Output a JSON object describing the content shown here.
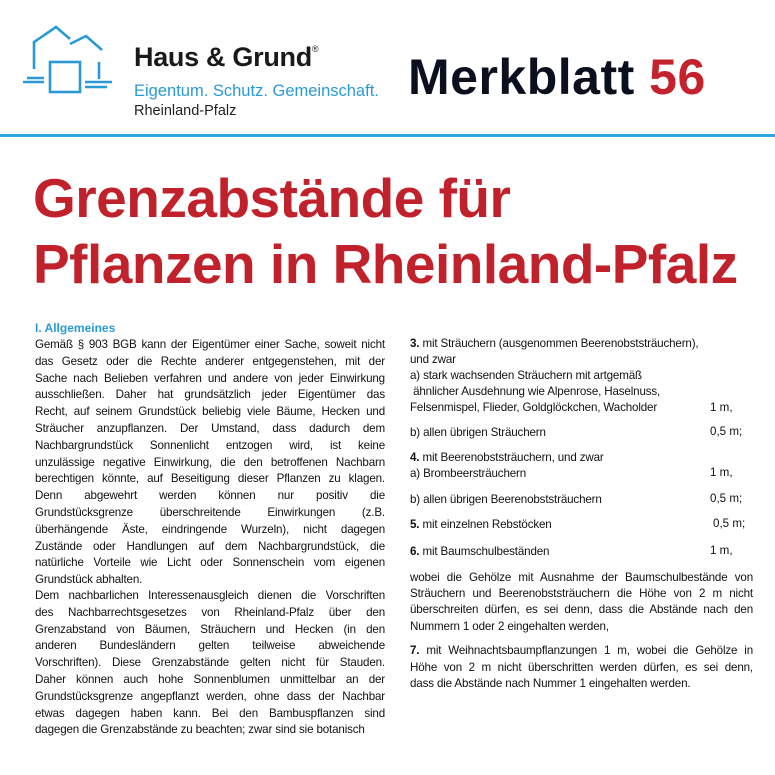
{
  "header": {
    "brand": "Haus & Grund",
    "registered": "®",
    "tagline": "Eigentum. Schutz. Gemeinschaft.",
    "region": "Rheinland-Pfalz",
    "merkblatt_label": "Merkblatt",
    "merkblatt_number": "56",
    "colors": {
      "accent_blue": "#2aa8e0",
      "title_red": "#c0212b"
    }
  },
  "title": {
    "line1": "Grenzabstände für",
    "line2": "Pflanzen in Rheinland-Pfalz"
  },
  "left": {
    "heading": "I. Allgemeines",
    "para1": [
      "Gemäß § 903 BGB kann der Eigentümer einer Sache, soweit nicht",
      "das Gesetz oder die Rechte anderer entgegenstehen, mit der",
      "Sache nach Belieben verfahren und andere von jeder Einwirkung",
      "ausschließen. Daher hat grundsätzlich jeder Eigentümer das",
      "Recht, auf seinem Grundstück beliebig viele Bäume, Hecken und",
      "Sträucher anzupflanzen. Der Umstand, dass dadurch dem",
      "Nachbargrundstück Sonnenlicht entzogen wird, ist keine",
      "unzulässige negative Einwirkung, die den betroffenen Nachbarn",
      "berechtigen könnte, auf Beseitigung dieser Pflanzen zu klagen.",
      "Denn abgewehrt werden können nur positiv die",
      "Grundstücksgrenze überschreitende Einwirkungen (z.B.",
      "überhängende Äste, eindringende Wurzeln), nicht dagegen",
      "Zustände oder Handlungen auf dem Nachbargrundstück, die",
      "natürliche Vorteile wie Licht oder Sonnenschein vom eigenen",
      "Grundstück abhalten."
    ],
    "para2": [
      "Dem nachbarlichen Interessenausgleich dienen die Vorschriften",
      "des Nachbarrechtsgesetzes von Rheinland-Pfalz über den",
      "Grenzabstand von Bäumen, Sträuchern und Hecken (in den",
      "anderen Bundesländern gelten teilweise abweichende",
      "Vorschriften). Diese Grenzabstände gelten nicht für Stauden.",
      "Daher können auch hohe Sonnenblumen unmittelbar an der",
      "Grundstücksgrenze angepflanzt werden, ohne dass der Nachbar",
      "etwas dagegen haben kann. Bei den Bambuspflanzen sind",
      "dagegen die Grenzabstände zu beachten; zwar sind sie botanisch"
    ]
  },
  "right": {
    "item3": {
      "num": "3.",
      "lines": [
        "mit Sträuchern (ausgenommen Beerenobststräuchern),",
        "und zwar",
        "a) stark wachsenden Sträuchern mit artgemäß",
        " ähnlicher Ausdehnung wie Alpenrose, Haselnuss,",
        "Felsenmispel, Flieder, Goldglöckchen, Wacholder"
      ],
      "value_a": "1 m,",
      "b": "b) allen übrigen Sträuchern",
      "value_b": "0,5 m;"
    },
    "item4": {
      "num": "4.",
      "text": "mit Beerenobststräuchern, und zwar",
      "a": "a) Brombeersträuchern",
      "value_a": "1 m,",
      "b": "b) allen übrigen Beerenobststräuchern",
      "value_b": "0,5 m;"
    },
    "item5": {
      "num": "5.",
      "text": "mit einzelnen Rebstöcken",
      "value": "0,5 m;"
    },
    "item6": {
      "num": "6.",
      "text": "mit Baumschulbeständen",
      "value": "1 m,"
    },
    "note": [
      "wobei die Gehölze mit Ausnahme der Baumschulbestände von",
      "Sträuchern und Beerenobststräuchern die Höhe von 2 m nicht",
      "überschreiten dürfen, es sei denn, dass die Abstände nach den",
      "Nummern 1 oder 2 eingehalten werden,"
    ],
    "item7": {
      "num": "7.",
      "lines": [
        "mit Weihnachtsbaumpflanzungen 1 m, wobei die Gehölze in",
        "Höhe von 2 m nicht überschritten werden dürfen, es sei denn,",
        "dass die Abstände nach Nummer 1 eingehalten werden."
      ]
    }
  }
}
